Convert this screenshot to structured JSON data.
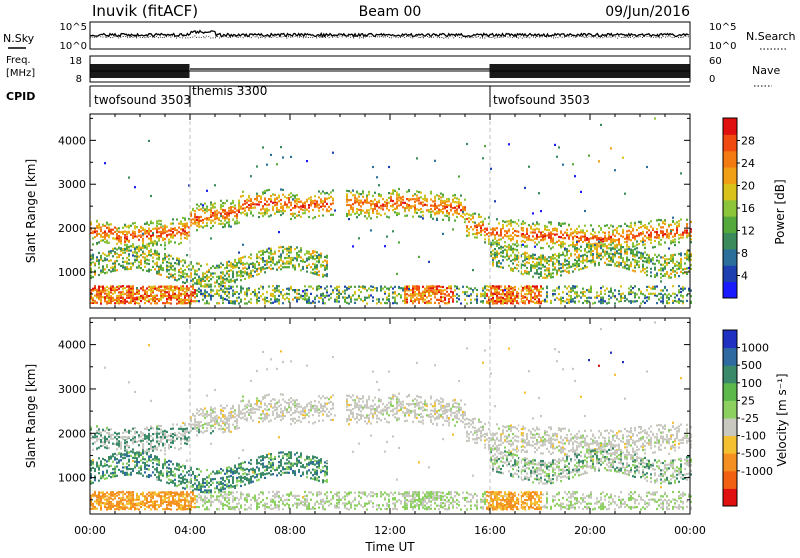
{
  "header": {
    "station": "Inuvik (fitACF)",
    "beam": "Beam 00",
    "date": "09/Jun/2016"
  },
  "sky_panel": {
    "left_label": "N.Sky",
    "right_label": "N.Search",
    "left_ticks": [
      "10^5",
      "10^0"
    ],
    "right_ticks": [
      "10^5",
      "10^0"
    ]
  },
  "freq_panel": {
    "left_label_line1": "Freq.",
    "left_label_line2": "[MHz]",
    "right_label": "Nave",
    "left_ticks": [
      "18",
      "8"
    ],
    "right_ticks": [
      "60",
      "0"
    ]
  },
  "cpid": {
    "label": "CPID",
    "segments": [
      {
        "name": "twofsound 3503",
        "start_hour": 0,
        "end_hour": 4
      },
      {
        "name": "themis 3300",
        "start_hour": 4,
        "end_hour": 16
      },
      {
        "name": "twofsound 3503",
        "start_hour": 16,
        "end_hour": 24
      }
    ]
  },
  "time_axis": {
    "label": "Time UT",
    "ticks": [
      "00:00",
      "04:00",
      "08:00",
      "12:00",
      "16:00",
      "20:00",
      "00:00"
    ],
    "range_hours": [
      0,
      24
    ]
  },
  "chart_data": [
    {
      "type": "heatmap",
      "panel": "power",
      "ylabel": "Slant Range [km]",
      "ylim": [
        180,
        4600
      ],
      "yticks": [
        1000,
        2000,
        3000,
        4000
      ],
      "colorbar": {
        "label": "Power [dB]",
        "ticks": [
          "4",
          "8",
          "12",
          "16",
          "20",
          "24",
          "28"
        ],
        "range": [
          0,
          32
        ],
        "colors": [
          "#1a1aff",
          "#1e3fb0",
          "#2b6f9a",
          "#3a8a5c",
          "#55a83c",
          "#8cc43a",
          "#d9c21a",
          "#f0a015",
          "#f47a12",
          "#f04a10",
          "#e01010"
        ]
      }
    },
    {
      "type": "heatmap",
      "panel": "velocity",
      "ylabel": "Slant Range [km]",
      "ylim": [
        180,
        4600
      ],
      "yticks": [
        1000,
        2000,
        3000,
        4000
      ],
      "colorbar": {
        "label": "Velocity [m s⁻¹]",
        "ticks": [
          "1000",
          "500",
          "100",
          "25",
          "-25",
          "-100",
          "-500",
          "-1000"
        ],
        "colors": [
          "#2030c0",
          "#2e6aa0",
          "#3a8a6a",
          "#5cb84a",
          "#8cd060",
          "#c8c8c0",
          "#f4c030",
          "#f49020",
          "#f06010",
          "#e01010"
        ]
      }
    }
  ]
}
